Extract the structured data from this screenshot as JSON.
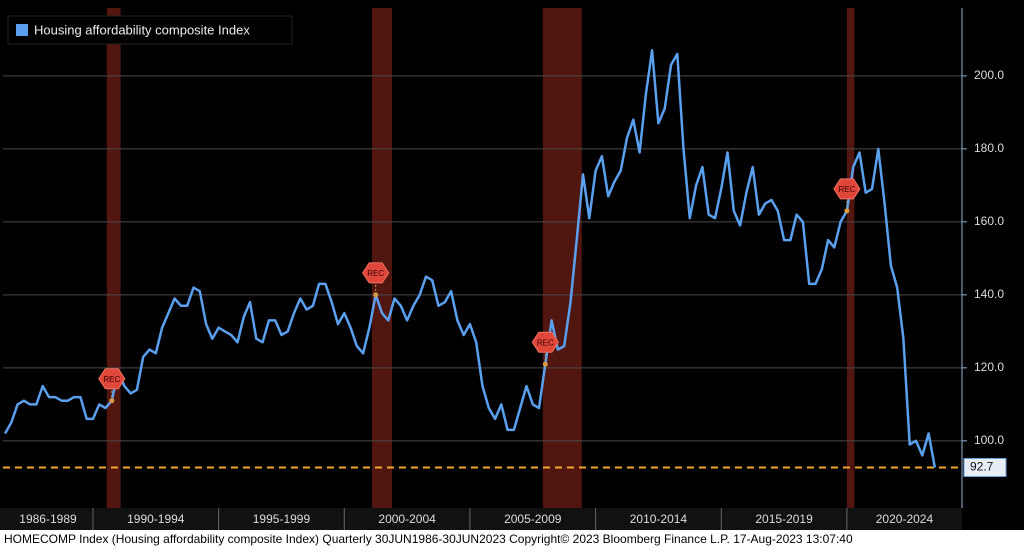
{
  "chart_data": {
    "type": "line",
    "legend": "Housing affordability composite Index",
    "footer": "HOMECOMP Index (Housing affordability composite Index)  Quarterly 30JUN1986-30JUN2023 Copyright© 2023 Bloomberg Finance L.P.  17-Aug-2023 13:07:40",
    "series": [
      {
        "name": "Housing affordability composite Index",
        "color": "#5aa0ef",
        "values": [
          102,
          105,
          110,
          111,
          110,
          110,
          115,
          112,
          112,
          111,
          111,
          112,
          112,
          106,
          106,
          110,
          109,
          111,
          119,
          115,
          113,
          114,
          123,
          125,
          124,
          131,
          135,
          139,
          137,
          137,
          142,
          141,
          132,
          128,
          131,
          130,
          129,
          127,
          134,
          138,
          128,
          127,
          133,
          133,
          129,
          130,
          135,
          139,
          136,
          137,
          143,
          143,
          138,
          132,
          135,
          131,
          126,
          124,
          131,
          140,
          135,
          133,
          139,
          137,
          133,
          137,
          140,
          145,
          144,
          137,
          138,
          141,
          133,
          129,
          132,
          127,
          115,
          109,
          106,
          110,
          103,
          103,
          109,
          115,
          110,
          109,
          121,
          133,
          125,
          126,
          138,
          155,
          173,
          161,
          174,
          178,
          167,
          171,
          174,
          183,
          188,
          179,
          195,
          207,
          187,
          191,
          203,
          206,
          180,
          161,
          170,
          175,
          162,
          161,
          169,
          179,
          163,
          159,
          168,
          175,
          162,
          165,
          166,
          163,
          155,
          155,
          162,
          160,
          143,
          143,
          147,
          155,
          153,
          160,
          163,
          175,
          179,
          168,
          169,
          180,
          165,
          148,
          142,
          128,
          99,
          100,
          96,
          102,
          92.7
        ]
      }
    ],
    "x": [
      1986.5,
      1986.75,
      1987,
      1987.25,
      1987.5,
      1987.75,
      1988,
      1988.25,
      1988.5,
      1988.75,
      1989,
      1989.25,
      1989.5,
      1989.75,
      1990,
      1990.25,
      1990.5,
      1990.75,
      1991,
      1991.25,
      1991.5,
      1991.75,
      1992,
      1992.25,
      1992.5,
      1992.75,
      1993,
      1993.25,
      1993.5,
      1993.75,
      1994,
      1994.25,
      1994.5,
      1994.75,
      1995,
      1995.25,
      1995.5,
      1995.75,
      1996,
      1996.25,
      1996.5,
      1996.75,
      1997,
      1997.25,
      1997.5,
      1997.75,
      1998,
      1998.25,
      1998.5,
      1998.75,
      1999,
      1999.25,
      1999.5,
      1999.75,
      2000,
      2000.25,
      2000.5,
      2000.75,
      2001,
      2001.25,
      2001.5,
      2001.75,
      2002,
      2002.25,
      2002.5,
      2002.75,
      2003,
      2003.25,
      2003.5,
      2003.75,
      2004,
      2004.25,
      2004.5,
      2004.75,
      2005,
      2005.25,
      2005.5,
      2005.75,
      2006,
      2006.25,
      2006.5,
      2006.75,
      2007,
      2007.25,
      2007.5,
      2007.75,
      2008,
      2008.25,
      2008.5,
      2008.75,
      2009,
      2009.25,
      2009.5,
      2009.75,
      2010,
      2010.25,
      2010.5,
      2010.75,
      2011,
      2011.25,
      2011.5,
      2011.75,
      2012,
      2012.25,
      2012.5,
      2012.75,
      2013,
      2013.25,
      2013.5,
      2013.75,
      2014,
      2014.25,
      2014.5,
      2014.75,
      2015,
      2015.25,
      2015.5,
      2015.75,
      2016,
      2016.25,
      2016.5,
      2016.75,
      2017,
      2017.25,
      2017.5,
      2017.75,
      2018,
      2018.25,
      2018.5,
      2018.75,
      2019,
      2019.25,
      2019.5,
      2019.75,
      2020,
      2020.25,
      2020.5,
      2020.75,
      2021,
      2021.25,
      2021.5,
      2021.75,
      2022,
      2022.25,
      2022.5,
      2022.75,
      2023,
      2023.25,
      2023.5
    ],
    "xlim": [
      1986.42,
      2024.58
    ],
    "xticks": [
      {
        "value": 1986,
        "label": "1986-1989"
      },
      {
        "value": 1990,
        "label": "1990-1994"
      },
      {
        "value": 1995,
        "label": "1995-1999"
      },
      {
        "value": 2000,
        "label": "2000-2004"
      },
      {
        "value": 2005,
        "label": "2005-2009"
      },
      {
        "value": 2010,
        "label": "2010-2014"
      },
      {
        "value": 2015,
        "label": "2015-2019"
      },
      {
        "value": 2020,
        "label": "2020-2024"
      }
    ],
    "ylim": [
      81.6,
      218.6
    ],
    "yticks": [
      {
        "value": 100,
        "label": "100.0"
      },
      {
        "value": 120,
        "label": "120.0"
      },
      {
        "value": 140,
        "label": "140.0"
      },
      {
        "value": 160,
        "label": "160.0"
      },
      {
        "value": 180,
        "label": "180.0"
      },
      {
        "value": 200,
        "label": "200.0"
      }
    ],
    "grid": true,
    "recessions": [
      {
        "start": 1990.55,
        "end": 1991.1,
        "label": "REC"
      },
      {
        "start": 2001.1,
        "end": 2001.9,
        "label": "REC"
      },
      {
        "start": 2007.9,
        "end": 2009.45,
        "label": "REC"
      },
      {
        "start": 2020.0,
        "end": 2020.3,
        "label": "REC"
      }
    ]
  }
}
